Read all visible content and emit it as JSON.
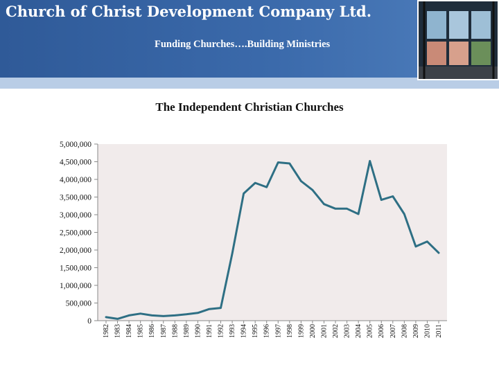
{
  "header": {
    "company": "Church of Christ Development Company Ltd.",
    "tagline": "Funding Churches….Building Ministries"
  },
  "colors": {
    "banner": "#3b6aab",
    "line": "#2e6f84",
    "plot_bg": "#f1ebeb"
  },
  "chart_data": {
    "type": "line",
    "title": "The Independent Christian Churches",
    "xlabel": "",
    "ylabel": "",
    "ylim": [
      0,
      5000000
    ],
    "yticks": [
      0,
      500000,
      1000000,
      1500000,
      2000000,
      2500000,
      3000000,
      3500000,
      4000000,
      4500000,
      5000000
    ],
    "ytick_labels": [
      "0",
      "500,000",
      "1,000,000",
      "1,500,000",
      "2,000,000",
      "2,500,000",
      "3,000,000",
      "3,500,000",
      "4,000,000",
      "4,500,000",
      "5,000,000"
    ],
    "grid": false,
    "categories": [
      "1982",
      "1983",
      "1984",
      "1985",
      "1986",
      "1987",
      "1988",
      "1989",
      "1990",
      "1991",
      "1992",
      "1993",
      "1994",
      "1995",
      "1996",
      "1997",
      "1998",
      "1999",
      "2000",
      "2001",
      "2002",
      "2003",
      "2004",
      "2005",
      "2006",
      "2007",
      "2008",
      "2009",
      "2010",
      "2011"
    ],
    "series": [
      {
        "values": [
          100000,
          50000,
          150000,
          200000,
          150000,
          130000,
          150000,
          180000,
          220000,
          330000,
          360000,
          1900000,
          3600000,
          3900000,
          3780000,
          4480000,
          4450000,
          3950000,
          3700000,
          3300000,
          3170000,
          3170000,
          3020000,
          4520000,
          3420000,
          3520000,
          3020000,
          2100000,
          2240000,
          1920000
        ]
      }
    ]
  }
}
